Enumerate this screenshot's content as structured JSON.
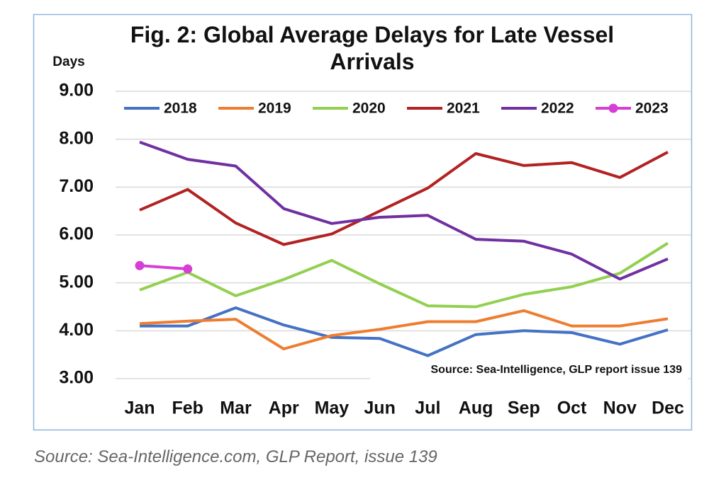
{
  "chart_data": {
    "type": "line",
    "title": "Fig. 2: Global Average Delays for Late Vessel Arrivals",
    "y_label": "Days",
    "annotation": "Source: Sea-Intelligence, GLP report issue 139",
    "caption": "Source: Sea-Intelligence.com, GLP Report, issue 139",
    "categories": [
      "Jan",
      "Feb",
      "Mar",
      "Apr",
      "May",
      "Jun",
      "Jul",
      "Aug",
      "Sep",
      "Oct",
      "Nov",
      "Dec"
    ],
    "ylim": [
      3,
      9
    ],
    "yticks": [
      {
        "value": 3,
        "label": "3.00"
      },
      {
        "value": 4,
        "label": "4.00"
      },
      {
        "value": 5,
        "label": "5.00"
      },
      {
        "value": 6,
        "label": "6.00"
      },
      {
        "value": 7,
        "label": "7.00"
      },
      {
        "value": 8,
        "label": "8.00"
      },
      {
        "value": 9,
        "label": "9.00"
      }
    ],
    "grid": true,
    "legend": "top",
    "series": [
      {
        "name": "2018",
        "color": "#4472c4",
        "values": [
          4.1,
          4.1,
          4.48,
          4.12,
          3.86,
          3.84,
          3.48,
          3.92,
          4.0,
          3.96,
          3.72,
          4.02
        ]
      },
      {
        "name": "2019",
        "color": "#ed7d31",
        "values": [
          4.15,
          4.2,
          4.24,
          3.62,
          3.9,
          4.03,
          4.19,
          4.19,
          4.42,
          4.1,
          4.1,
          4.25
        ]
      },
      {
        "name": "2020",
        "color": "#92d050",
        "values": [
          4.85,
          5.22,
          4.73,
          5.07,
          5.47,
          4.98,
          4.52,
          4.5,
          4.76,
          4.92,
          5.2,
          5.83
        ]
      },
      {
        "name": "2021",
        "color": "#b22222",
        "values": [
          6.52,
          6.95,
          6.25,
          5.8,
          6.02,
          6.5,
          6.98,
          7.7,
          7.45,
          7.51,
          7.2,
          7.73
        ]
      },
      {
        "name": "2022",
        "color": "#7030a0",
        "values": [
          7.94,
          7.58,
          7.44,
          6.55,
          6.24,
          6.37,
          6.41,
          5.91,
          5.87,
          5.6,
          5.08,
          5.5
        ]
      },
      {
        "name": "2023",
        "color": "#d63fd6",
        "markers": true,
        "values": [
          5.36,
          5.29,
          null,
          null,
          null,
          null,
          null,
          null,
          null,
          null,
          null,
          null
        ]
      }
    ]
  }
}
